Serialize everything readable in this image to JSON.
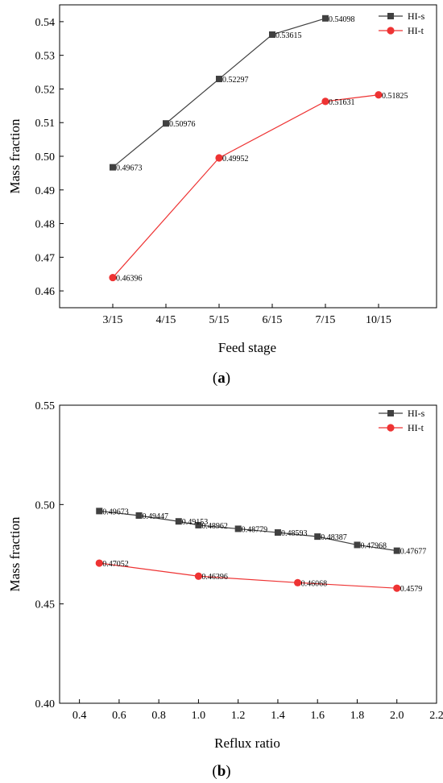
{
  "colors": {
    "hi_s": "#404040",
    "hi_t": "#ee3333",
    "axis": "#000000"
  },
  "chart_data": [
    {
      "type": "line",
      "caption_letter": "a",
      "xlabel": "Feed stage",
      "ylabel": "Mass fraction",
      "x_axis_kind": "categorical",
      "categories": [
        "3/15",
        "4/15",
        "5/15",
        "6/15",
        "7/15",
        "10/15"
      ],
      "ylim": [
        0.455,
        0.545
      ],
      "yticks": [
        0.46,
        0.47,
        0.48,
        0.49,
        0.5,
        0.51,
        0.52,
        0.53,
        0.54
      ],
      "ytick_labels": [
        "0.46",
        "0.47",
        "0.48",
        "0.49",
        "0.50",
        "0.51",
        "0.52",
        "0.53",
        "0.54"
      ],
      "legend_position": "top-right",
      "series": [
        {
          "name": "HI-s",
          "marker": "square",
          "color": "#404040",
          "x": [
            "3/15",
            "4/15",
            "5/15",
            "6/15",
            "7/15"
          ],
          "values": [
            0.49673,
            0.50976,
            0.52297,
            0.53615,
            0.54098
          ],
          "labels": [
            "0.49673",
            "0.50976",
            "0.52297",
            "0.53615",
            "0.54098"
          ]
        },
        {
          "name": "HI-t",
          "marker": "circle",
          "color": "#ee3333",
          "x": [
            "3/15",
            "5/15",
            "7/15",
            "10/15"
          ],
          "values": [
            0.46396,
            0.49952,
            0.51631,
            0.51825
          ],
          "labels": [
            "0.46396",
            "0.49952",
            "0.51631",
            "0.51825"
          ]
        }
      ]
    },
    {
      "type": "line",
      "caption_letter": "b",
      "xlabel": "Reflux ratio",
      "ylabel": "Mass fraction",
      "x_axis_kind": "numeric",
      "xlim": [
        0.3,
        2.2
      ],
      "xticks": [
        0.4,
        0.6,
        0.8,
        1.0,
        1.2,
        1.4,
        1.6,
        1.8,
        2.0,
        2.2
      ],
      "xtick_labels": [
        "0.4",
        "0.6",
        "0.8",
        "1.0",
        "1.2",
        "1.4",
        "1.6",
        "1.8",
        "2.0",
        "2.2"
      ],
      "ylim": [
        0.4,
        0.55
      ],
      "yticks": [
        0.4,
        0.45,
        0.5,
        0.55
      ],
      "ytick_labels": [
        "0.40",
        "0.45",
        "0.50",
        "0.55"
      ],
      "legend_position": "top-right",
      "series": [
        {
          "name": "HI-s",
          "marker": "square",
          "color": "#404040",
          "x": [
            0.5,
            0.7,
            0.9,
            1.0,
            1.2,
            1.4,
            1.6,
            1.8,
            2.0
          ],
          "values": [
            0.49673,
            0.49447,
            0.49153,
            0.48962,
            0.48779,
            0.48593,
            0.48387,
            0.47968,
            0.47677
          ],
          "labels": [
            "0.49673",
            "0.49447",
            "0.49153",
            "0.48962",
            "0.48779",
            "0.48593",
            "0.48387",
            "0.47968",
            "0.47677"
          ]
        },
        {
          "name": "HI-t",
          "marker": "circle",
          "color": "#ee3333",
          "x": [
            0.5,
            1.0,
            1.5,
            2.0
          ],
          "values": [
            0.47052,
            0.46396,
            0.46068,
            0.4579
          ],
          "labels": [
            "0.47052",
            "0.46396",
            "0.46068",
            "0.4579"
          ]
        }
      ]
    }
  ]
}
